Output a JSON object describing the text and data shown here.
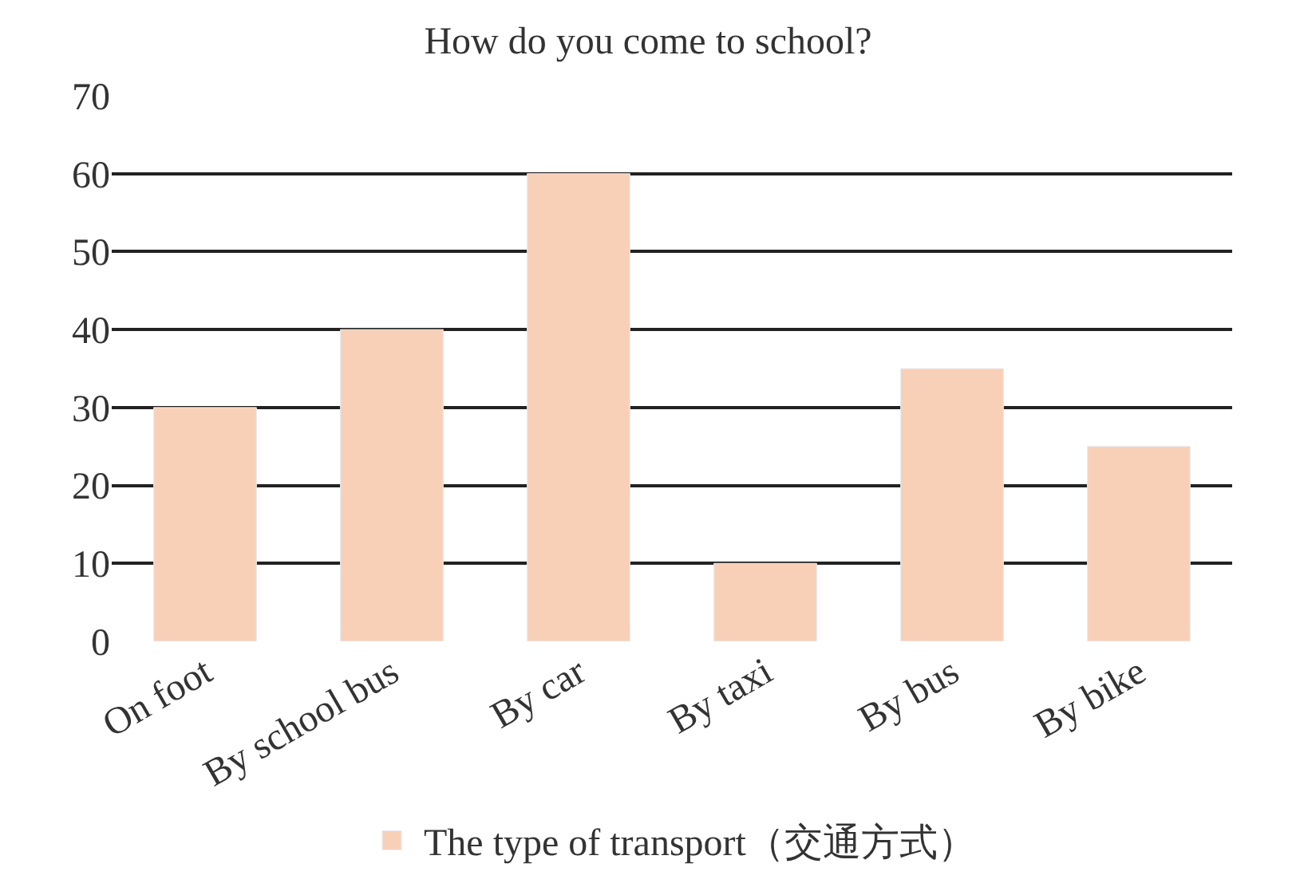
{
  "chart_data": {
    "type": "bar",
    "title": "How do you come to school?",
    "categories": [
      "On foot",
      "By school bus",
      "By car",
      "By taxi",
      "By bus",
      "By bike"
    ],
    "series": [
      {
        "name": "The type of transport（交通方式）",
        "color": "#f8d0b8",
        "values": [
          30,
          40,
          60,
          10,
          35,
          25
        ]
      }
    ],
    "ylim": [
      0,
      70
    ],
    "yticks": [
      0,
      10,
      20,
      30,
      40,
      50,
      60,
      70
    ],
    "grid": "y",
    "legend": "bottom"
  }
}
